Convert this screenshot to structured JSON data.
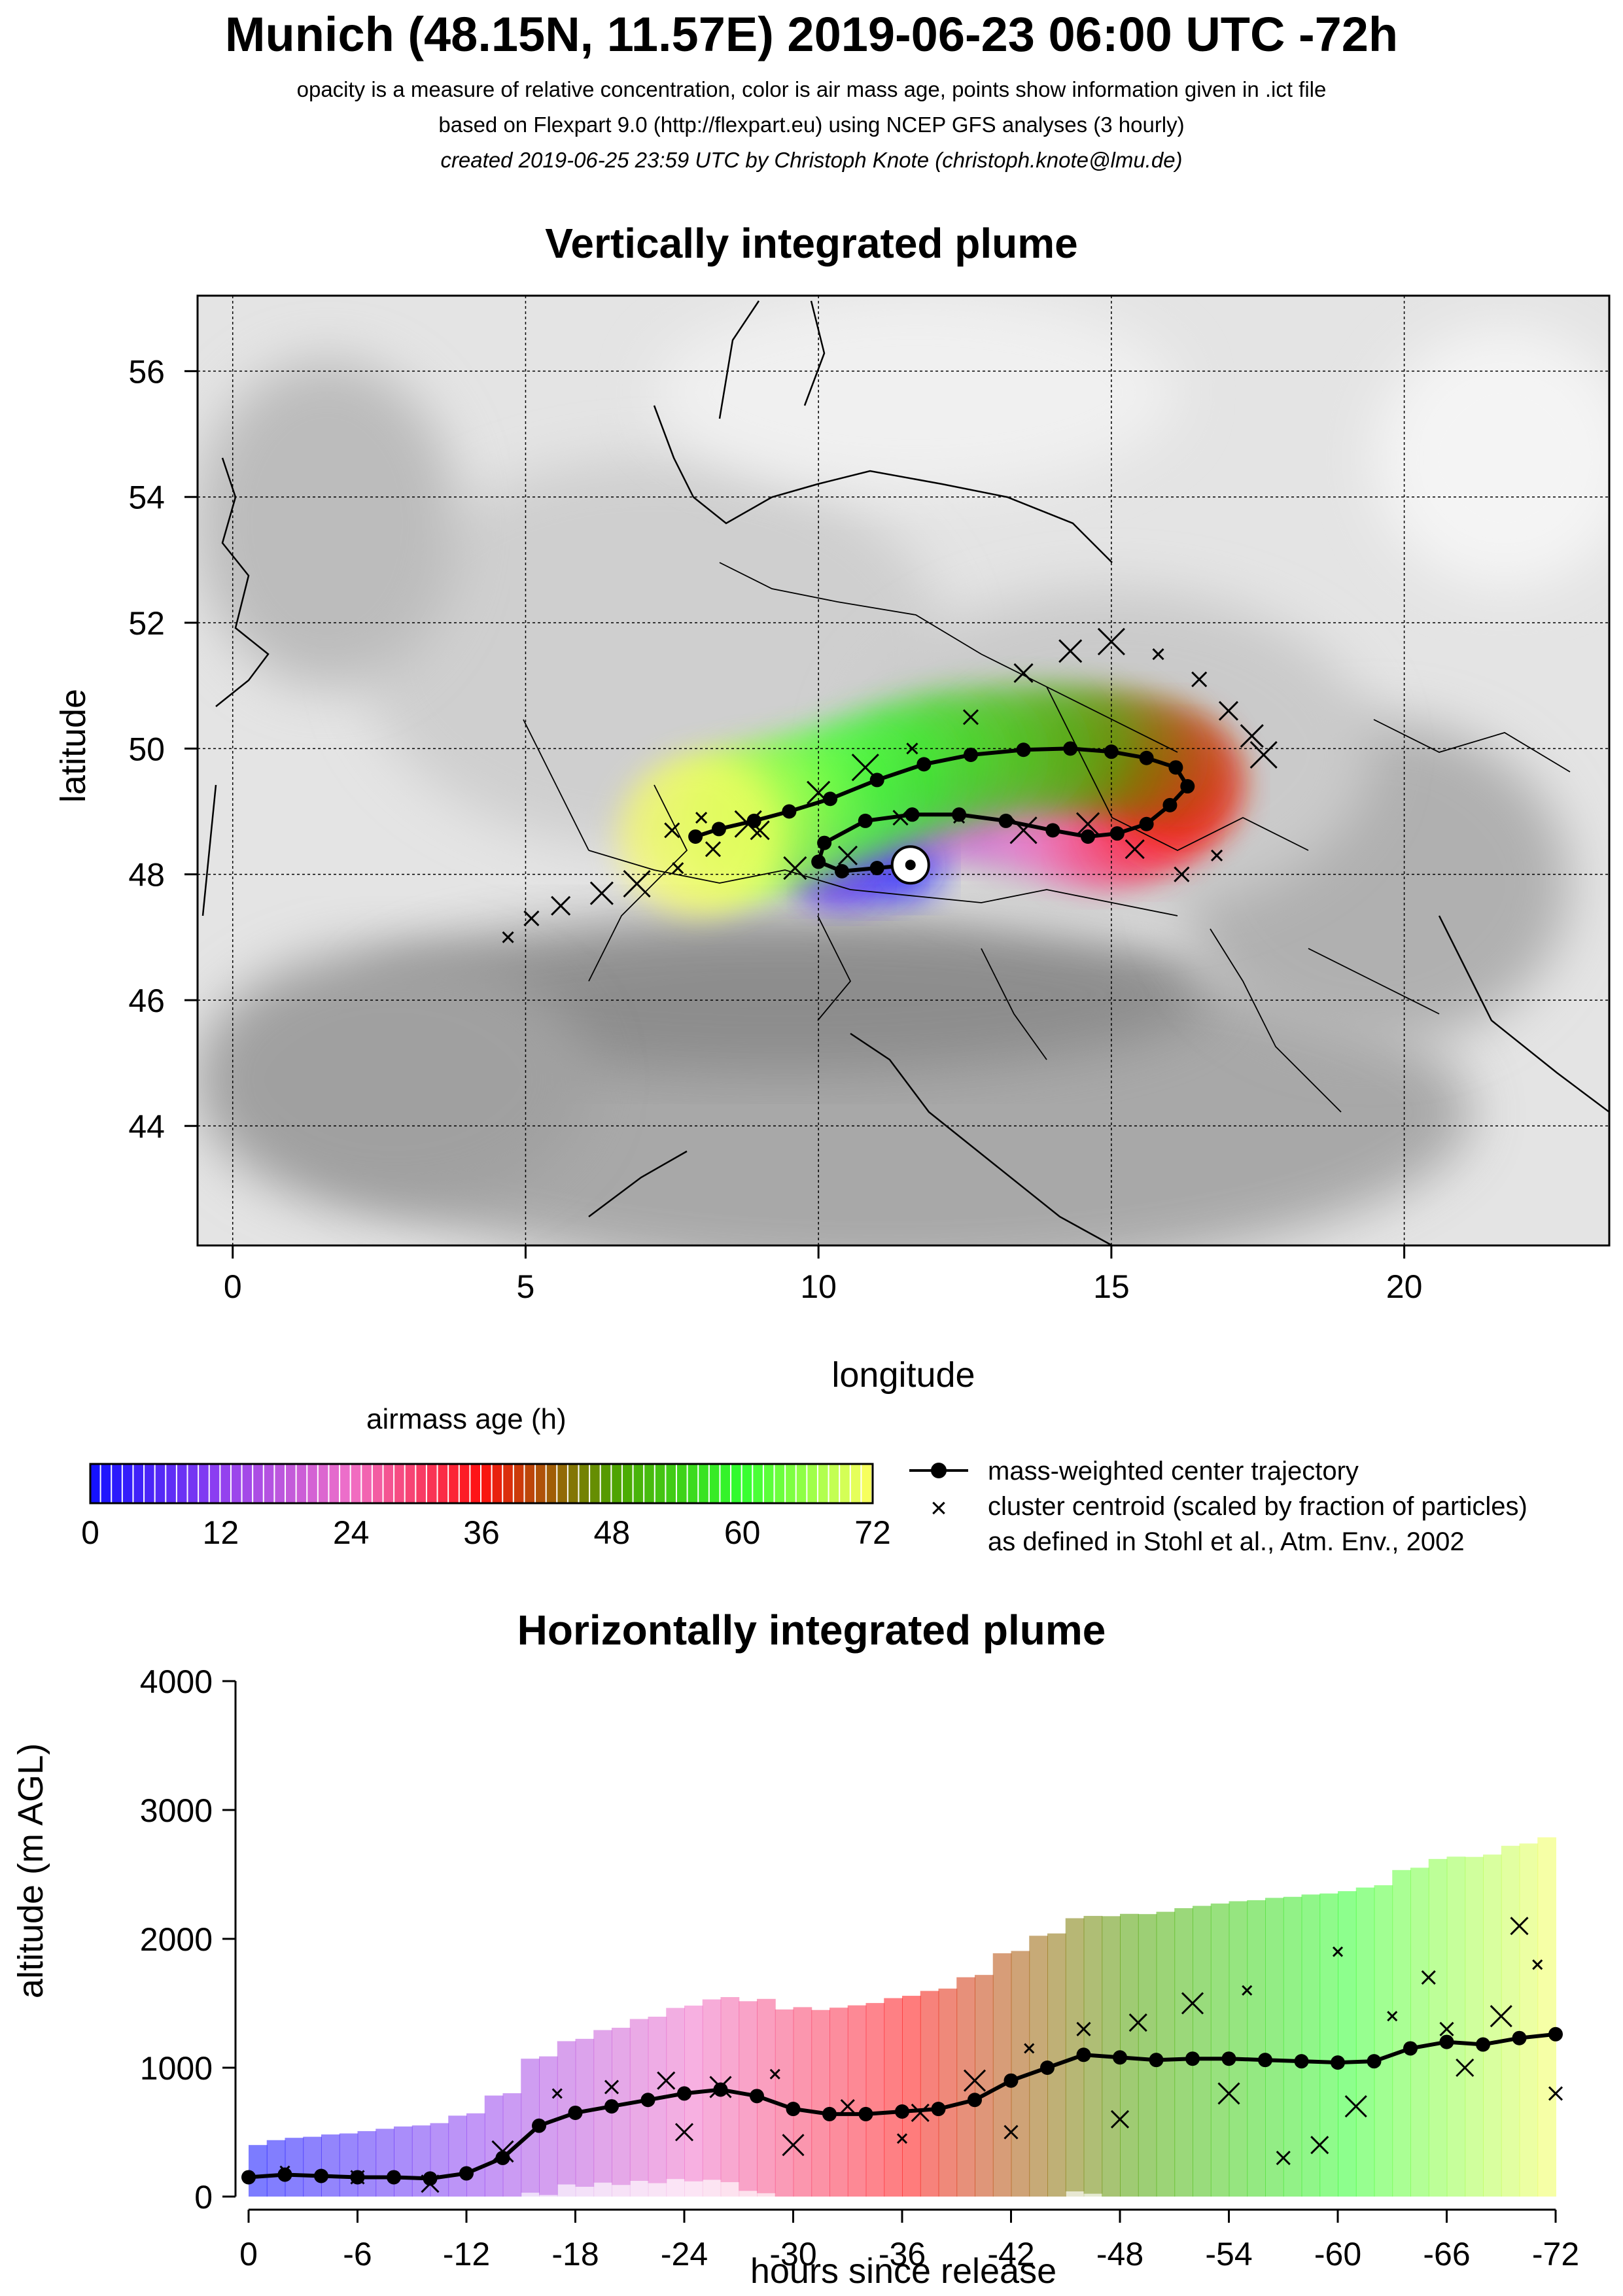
{
  "header": {
    "title": "Munich (48.15N, 11.57E) 2019-06-23 06:00 UTC -72h",
    "subtitle_1": "opacity is a measure of relative concentration, color is air mass age, points show information given in .ict file",
    "subtitle_2": "based on Flexpart 9.0 (http://flexpart.eu) using NCEP GFS analyses (3 hourly)",
    "subtitle_3": "created 2019-06-25 23:59 UTC by Christoph Knote (christoph.knote@lmu.de)"
  },
  "colors": {
    "age_0": "#1010ff",
    "age_12": "#9040f0",
    "age_24": "#f070c8",
    "age_36": "#ff1010",
    "age_48": "#50a000",
    "age_60": "#30ff30",
    "age_72": "#ffff60",
    "land_gray": "#c8c8c8",
    "trajectory": "#000000"
  },
  "chart_data": [
    {
      "type": "scatter",
      "title": "Vertically integrated plume",
      "xlabel": "longitude",
      "ylabel": "latitude",
      "xlim": [
        -0.6,
        23.5
      ],
      "ylim": [
        42.1,
        57.2
      ],
      "xticks": [
        0,
        5,
        10,
        15,
        20
      ],
      "yticks": [
        44,
        46,
        48,
        50,
        52,
        54,
        56
      ],
      "grid": true,
      "release_point": {
        "lon": 11.57,
        "lat": 48.15
      },
      "series": [
        {
          "name": "mass-weighted center trajectory",
          "lon": [
            11.57,
            11.0,
            10.4,
            10.0,
            10.1,
            10.8,
            11.6,
            12.4,
            13.2,
            14.0,
            14.6,
            15.1,
            15.6,
            16.0,
            16.3,
            16.1,
            15.6,
            15.0,
            14.3,
            13.5,
            12.6,
            11.8,
            11.0,
            10.2,
            9.5,
            8.9,
            8.3,
            7.9
          ],
          "lat": [
            48.15,
            48.1,
            48.05,
            48.2,
            48.5,
            48.85,
            48.95,
            48.95,
            48.85,
            48.7,
            48.6,
            48.65,
            48.8,
            49.1,
            49.4,
            49.7,
            49.85,
            49.95,
            50.0,
            49.98,
            49.9,
            49.75,
            49.5,
            49.2,
            49.0,
            48.85,
            48.72,
            48.6
          ]
        },
        {
          "name": "cluster centroid (scaled by fraction of particles)",
          "lon": [
            4.7,
            5.1,
            5.6,
            6.3,
            6.9,
            7.6,
            8.2,
            9.0,
            10.0,
            10.8,
            11.6,
            12.6,
            13.5,
            14.3,
            15.0,
            15.8,
            16.5,
            17.0,
            17.4,
            17.6,
            16.8,
            16.2,
            15.4,
            14.6,
            13.5,
            12.4,
            11.4,
            10.5,
            9.6,
            8.8,
            8.0,
            7.5
          ],
          "lat": [
            47.0,
            47.3,
            47.5,
            47.7,
            47.85,
            48.1,
            48.4,
            48.7,
            49.3,
            49.7,
            50.0,
            50.5,
            51.2,
            51.55,
            51.7,
            51.5,
            51.1,
            50.6,
            50.2,
            49.9,
            48.3,
            48.0,
            48.4,
            48.8,
            48.7,
            48.9,
            48.9,
            48.3,
            48.1,
            48.8,
            48.9,
            48.7
          ]
        }
      ]
    },
    {
      "type": "colorbar",
      "title": "airmass age (h)",
      "ticks": [
        0,
        12,
        24,
        36,
        48,
        60,
        72
      ],
      "range": [
        0,
        72
      ]
    },
    {
      "type": "scatter",
      "title": "Horizontally integrated plume",
      "xlabel": "hours since release",
      "ylabel": "altitude (m AGL)",
      "xlim": [
        0,
        -72
      ],
      "ylim": [
        0,
        4000
      ],
      "xticks": [
        0,
        -6,
        -12,
        -18,
        -24,
        -30,
        -36,
        -42,
        -48,
        -54,
        -60,
        -66,
        -72
      ],
      "yticks": [
        0,
        1000,
        2000,
        3000,
        4000
      ],
      "grid": false,
      "series": [
        {
          "name": "mass-weighted center trajectory",
          "x": [
            0,
            -2,
            -4,
            -6,
            -8,
            -10,
            -12,
            -14,
            -16,
            -18,
            -20,
            -22,
            -24,
            -26,
            -28,
            -30,
            -32,
            -34,
            -36,
            -38,
            -40,
            -42,
            -44,
            -46,
            -48,
            -50,
            -52,
            -54,
            -56,
            -58,
            -60,
            -62,
            -64,
            -66,
            -68,
            -70,
            -72
          ],
          "y": [
            150,
            170,
            160,
            150,
            150,
            140,
            180,
            300,
            550,
            650,
            700,
            750,
            800,
            830,
            780,
            680,
            640,
            640,
            660,
            680,
            750,
            900,
            1000,
            1100,
            1080,
            1060,
            1070,
            1070,
            1060,
            1050,
            1040,
            1050,
            1150,
            1200,
            1180,
            1230,
            1260
          ]
        },
        {
          "name": "cluster centroid (scaled by fraction of particles)",
          "x": [
            -2,
            -6,
            -10,
            -14,
            -17,
            -20,
            -23,
            -26,
            -29,
            -33,
            -37,
            -40,
            -43,
            -46,
            -49,
            -52,
            -55,
            -57,
            -59,
            -61,
            -63,
            -65,
            -67,
            -69,
            -71,
            -72,
            -24,
            -30,
            -36,
            -42,
            -48,
            -54,
            -60,
            -66,
            -70
          ],
          "y": [
            200,
            150,
            100,
            350,
            800,
            850,
            900,
            850,
            950,
            700,
            650,
            900,
            1150,
            1300,
            1350,
            1500,
            1600,
            300,
            400,
            700,
            1400,
            1700,
            1000,
            1400,
            1800,
            800,
            500,
            400,
            450,
            500,
            600,
            800,
            1900,
            1300,
            2100
          ]
        }
      ]
    }
  ]
}
